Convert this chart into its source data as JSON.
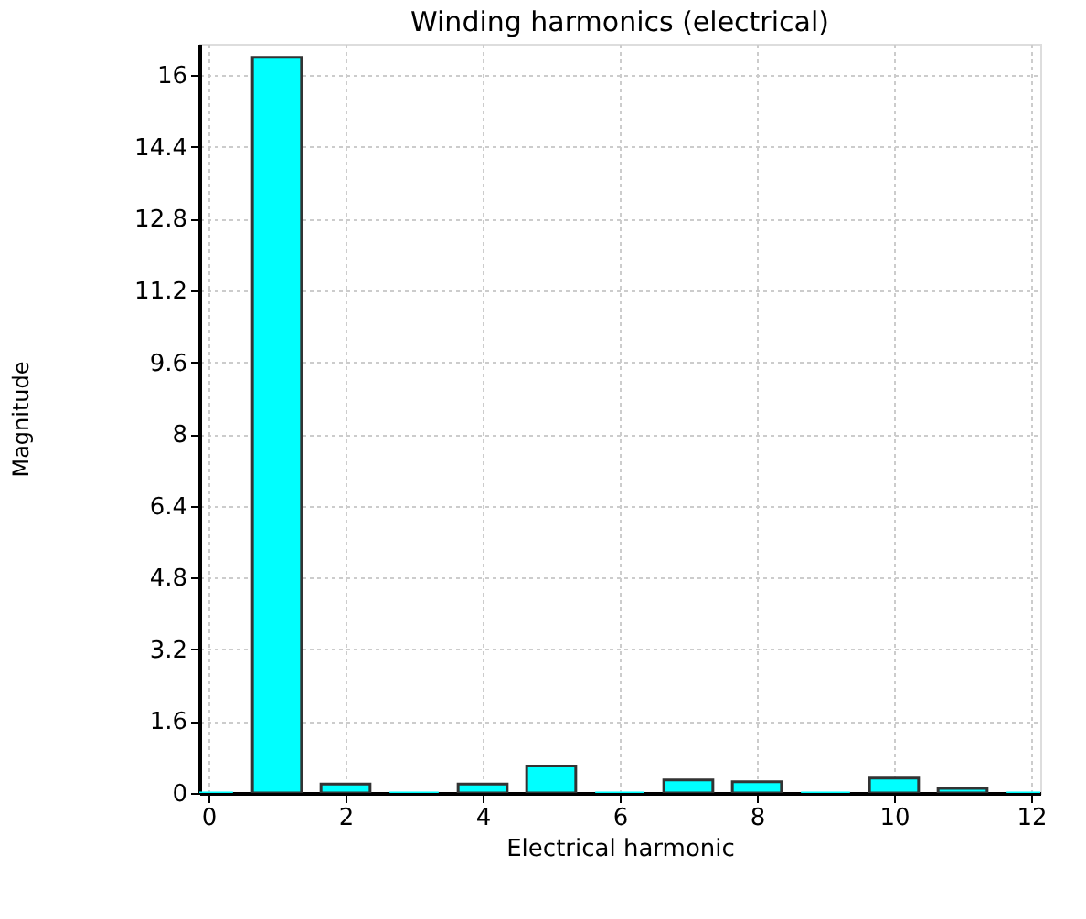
{
  "chart_data": {
    "type": "bar",
    "title": "Winding harmonics (electrical)",
    "xlabel": "Electrical harmonic",
    "ylabel": "Magnitude",
    "x": [
      0,
      1,
      2,
      3,
      4,
      5,
      6,
      7,
      8,
      9,
      10,
      11,
      12
    ],
    "values": [
      0,
      16.4,
      0.2,
      0,
      0.2,
      0.6,
      0,
      0.29,
      0.25,
      0,
      0.33,
      0.1,
      0
    ],
    "color": "#00ffff",
    "xlim": [
      0,
      12
    ],
    "xticks": [
      0,
      2,
      4,
      6,
      8,
      10,
      12
    ],
    "ylim": [
      0,
      16.7
    ],
    "yticks": [
      0,
      1.6,
      3.2,
      4.8,
      6.4,
      8,
      9.6,
      11.2,
      12.8,
      14.4,
      16
    ],
    "grid": true
  }
}
